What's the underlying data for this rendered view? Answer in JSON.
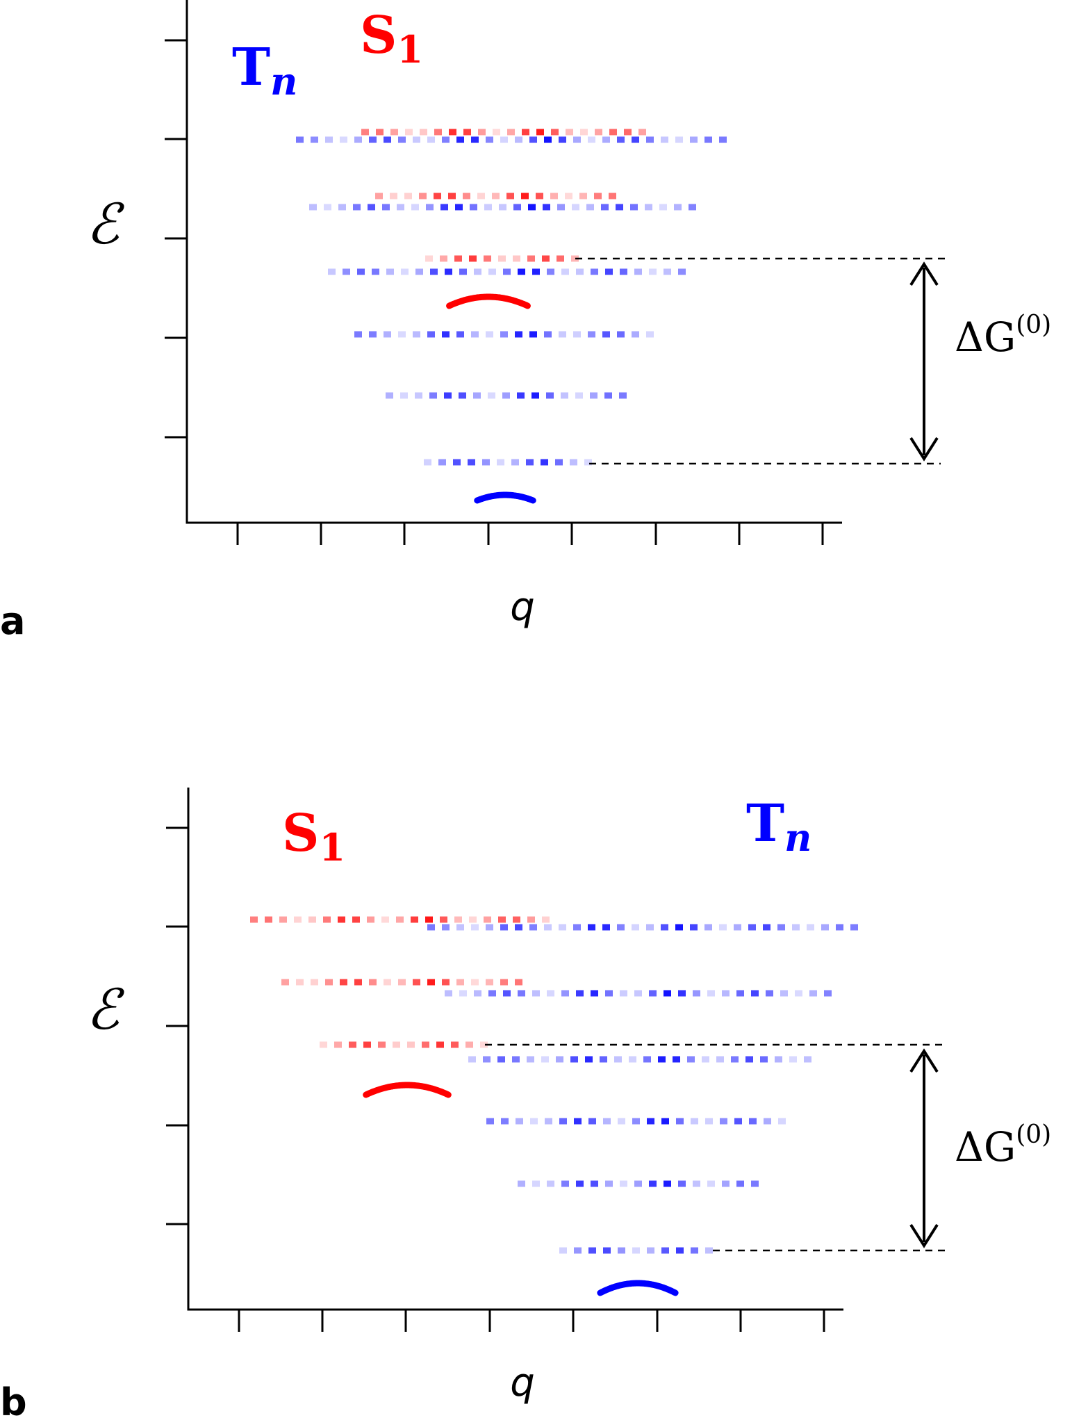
{
  "colors": {
    "singlet": "#ff0000",
    "triplet": "#0000ff",
    "axis": "#000000"
  },
  "panels": [
    {
      "panel_label": "a",
      "y_axis_label": "ℰ",
      "x_axis_label": "q",
      "curve_labels": {
        "triplet": {
          "main": "T",
          "sub": "n"
        },
        "singlet": {
          "main": "S",
          "sub": "1"
        }
      },
      "gap_label": {
        "main": "ΔG",
        "sup": "(0)"
      }
    },
    {
      "panel_label": "b",
      "y_axis_label": "ℰ",
      "x_axis_label": "q",
      "curve_labels": {
        "triplet": {
          "main": "T",
          "sub": "n"
        },
        "singlet": {
          "main": "S",
          "sub": "1"
        }
      },
      "gap_label": {
        "main": "ΔG",
        "sup": "(0)"
      }
    }
  ]
}
